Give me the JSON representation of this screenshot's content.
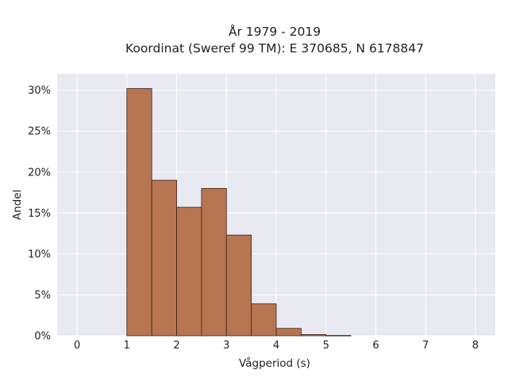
{
  "chart_data": {
    "type": "bar",
    "title_line1": "År 1979 - 2019",
    "title_line2": "Koordinat (Sweref 99 TM): E 370685, N 6178847",
    "xlabel": "Vågperiod (s)",
    "ylabel": "Andel",
    "xlim": [
      -0.4,
      8.4
    ],
    "ylim": [
      0,
      0.32
    ],
    "x_ticks": [
      0,
      1,
      2,
      3,
      4,
      5,
      6,
      7,
      8
    ],
    "x_tick_labels": [
      "0",
      "1",
      "2",
      "3",
      "4",
      "5",
      "6",
      "7",
      "8"
    ],
    "y_ticks": [
      0,
      0.05,
      0.1,
      0.15,
      0.2,
      0.25,
      0.3
    ],
    "y_tick_labels": [
      "0%",
      "5%",
      "10%",
      "15%",
      "20%",
      "25%",
      "30%"
    ],
    "bin_width": 0.5,
    "bins": [
      {
        "x0": 1.0,
        "value": 0.302
      },
      {
        "x0": 1.5,
        "value": 0.19
      },
      {
        "x0": 2.0,
        "value": 0.157
      },
      {
        "x0": 2.5,
        "value": 0.18
      },
      {
        "x0": 3.0,
        "value": 0.123
      },
      {
        "x0": 3.5,
        "value": 0.039
      },
      {
        "x0": 4.0,
        "value": 0.009
      },
      {
        "x0": 4.5,
        "value": 0.0015
      },
      {
        "x0": 5.0,
        "value": 0.0004
      }
    ],
    "grid": true,
    "colors": {
      "bar_fill": "#b87551",
      "bar_stroke": "#3a2418",
      "plot_bg": "#e9e9f1",
      "grid": "#ffffff"
    }
  }
}
